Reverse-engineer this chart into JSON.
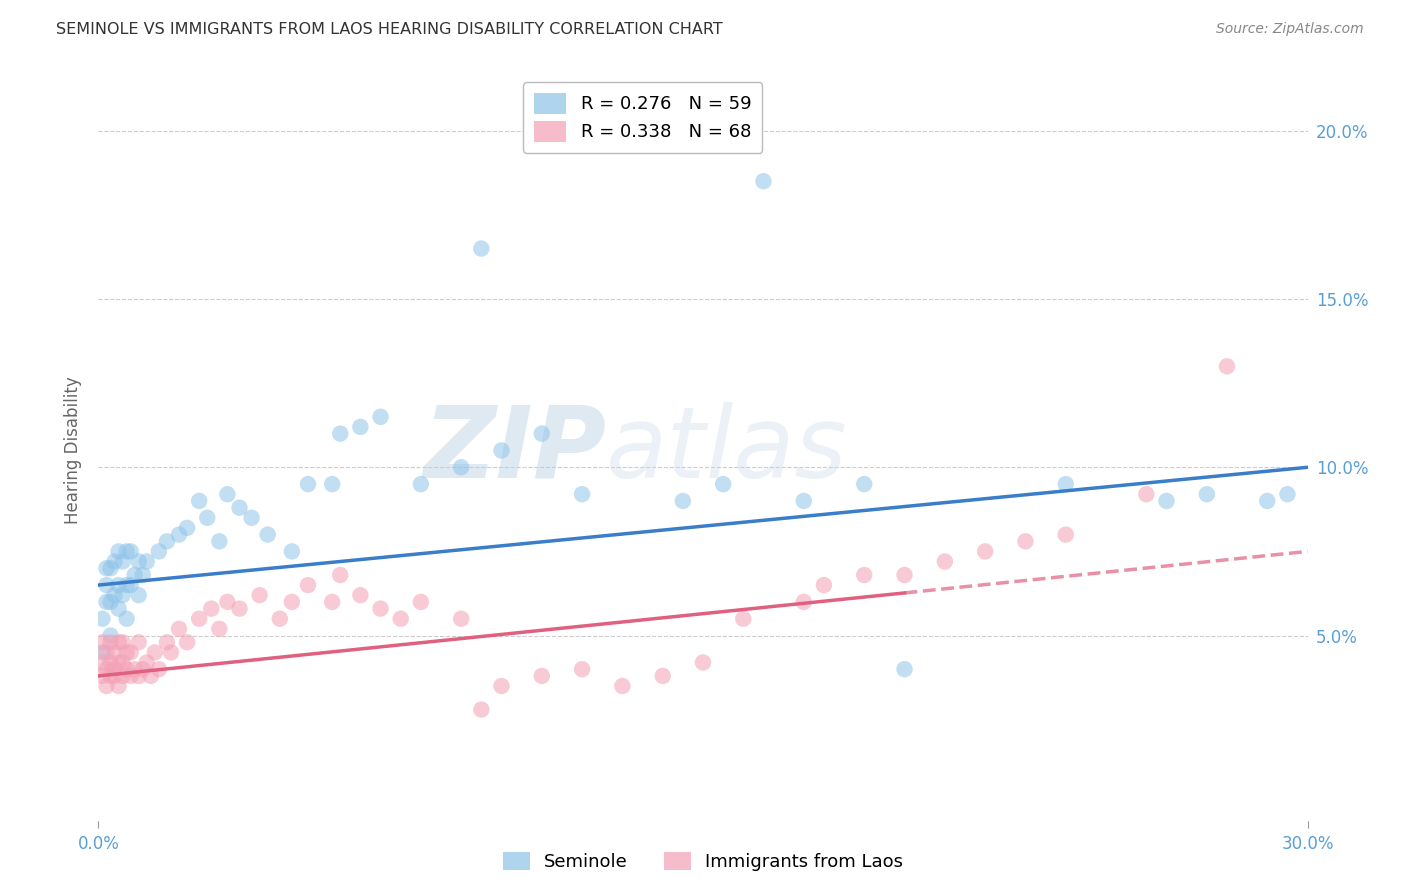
{
  "title": "SEMINOLE VS IMMIGRANTS FROM LAOS HEARING DISABILITY CORRELATION CHART",
  "source": "Source: ZipAtlas.com",
  "xlabel_seminole": "Seminole",
  "xlabel_laos": "Immigrants from Laos",
  "ylabel": "Hearing Disability",
  "xlim": [
    0.0,
    0.3
  ],
  "ylim": [
    -0.005,
    0.215
  ],
  "xticks": [
    0.0,
    0.3
  ],
  "xtick_labels": [
    "0.0%",
    "30.0%"
  ],
  "yticks": [
    0.05,
    0.1,
    0.15,
    0.2
  ],
  "ytick_labels": [
    "5.0%",
    "10.0%",
    "15.0%",
    "20.0%"
  ],
  "r_seminole": 0.276,
  "n_seminole": 59,
  "r_laos": 0.338,
  "n_laos": 68,
  "color_seminole": "#8ec4e8",
  "color_laos": "#f4a0b5",
  "trendline_seminole_color": "#3a7dc9",
  "trendline_laos_color": "#e06080",
  "watermark_zip": "ZIP",
  "watermark_atlas": "atlas",
  "seminole_x": [
    0.001,
    0.001,
    0.002,
    0.002,
    0.002,
    0.003,
    0.003,
    0.003,
    0.004,
    0.004,
    0.005,
    0.005,
    0.005,
    0.006,
    0.006,
    0.007,
    0.007,
    0.007,
    0.008,
    0.008,
    0.009,
    0.01,
    0.01,
    0.011,
    0.012,
    0.015,
    0.017,
    0.02,
    0.022,
    0.025,
    0.027,
    0.03,
    0.032,
    0.035,
    0.038,
    0.042,
    0.048,
    0.052,
    0.058,
    0.06,
    0.065,
    0.07,
    0.08,
    0.09,
    0.095,
    0.1,
    0.11,
    0.12,
    0.145,
    0.155,
    0.165,
    0.175,
    0.19,
    0.2,
    0.24,
    0.265,
    0.275,
    0.29,
    0.295
  ],
  "seminole_y": [
    0.045,
    0.055,
    0.06,
    0.065,
    0.07,
    0.05,
    0.06,
    0.07,
    0.062,
    0.072,
    0.058,
    0.065,
    0.075,
    0.062,
    0.072,
    0.055,
    0.065,
    0.075,
    0.065,
    0.075,
    0.068,
    0.062,
    0.072,
    0.068,
    0.072,
    0.075,
    0.078,
    0.08,
    0.082,
    0.09,
    0.085,
    0.078,
    0.092,
    0.088,
    0.085,
    0.08,
    0.075,
    0.095,
    0.095,
    0.11,
    0.112,
    0.115,
    0.095,
    0.1,
    0.165,
    0.105,
    0.11,
    0.092,
    0.09,
    0.095,
    0.185,
    0.09,
    0.095,
    0.04,
    0.095,
    0.09,
    0.092,
    0.09,
    0.092
  ],
  "laos_x": [
    0.001,
    0.001,
    0.001,
    0.002,
    0.002,
    0.002,
    0.003,
    0.003,
    0.003,
    0.004,
    0.004,
    0.004,
    0.005,
    0.005,
    0.005,
    0.006,
    0.006,
    0.006,
    0.007,
    0.007,
    0.008,
    0.008,
    0.009,
    0.01,
    0.01,
    0.011,
    0.012,
    0.013,
    0.014,
    0.015,
    0.017,
    0.018,
    0.02,
    0.022,
    0.025,
    0.028,
    0.03,
    0.032,
    0.035,
    0.04,
    0.045,
    0.048,
    0.052,
    0.058,
    0.06,
    0.065,
    0.07,
    0.075,
    0.08,
    0.09,
    0.095,
    0.1,
    0.11,
    0.12,
    0.13,
    0.14,
    0.15,
    0.16,
    0.175,
    0.18,
    0.19,
    0.2,
    0.21,
    0.22,
    0.23,
    0.24,
    0.26,
    0.28
  ],
  "laos_y": [
    0.038,
    0.042,
    0.048,
    0.035,
    0.04,
    0.045,
    0.038,
    0.042,
    0.048,
    0.04,
    0.038,
    0.045,
    0.035,
    0.042,
    0.048,
    0.038,
    0.042,
    0.048,
    0.04,
    0.045,
    0.038,
    0.045,
    0.04,
    0.038,
    0.048,
    0.04,
    0.042,
    0.038,
    0.045,
    0.04,
    0.048,
    0.045,
    0.052,
    0.048,
    0.055,
    0.058,
    0.052,
    0.06,
    0.058,
    0.062,
    0.055,
    0.06,
    0.065,
    0.06,
    0.068,
    0.062,
    0.058,
    0.055,
    0.06,
    0.055,
    0.028,
    0.035,
    0.038,
    0.04,
    0.035,
    0.038,
    0.042,
    0.055,
    0.06,
    0.065,
    0.068,
    0.068,
    0.072,
    0.075,
    0.078,
    0.08,
    0.092,
    0.13
  ],
  "trendline_seminole_x0": 0.0,
  "trendline_seminole_y0": 0.065,
  "trendline_seminole_x1": 0.3,
  "trendline_seminole_y1": 0.1,
  "trendline_laos_x0": 0.0,
  "trendline_laos_y0": 0.038,
  "trendline_laos_x1": 0.3,
  "trendline_laos_y1": 0.075
}
